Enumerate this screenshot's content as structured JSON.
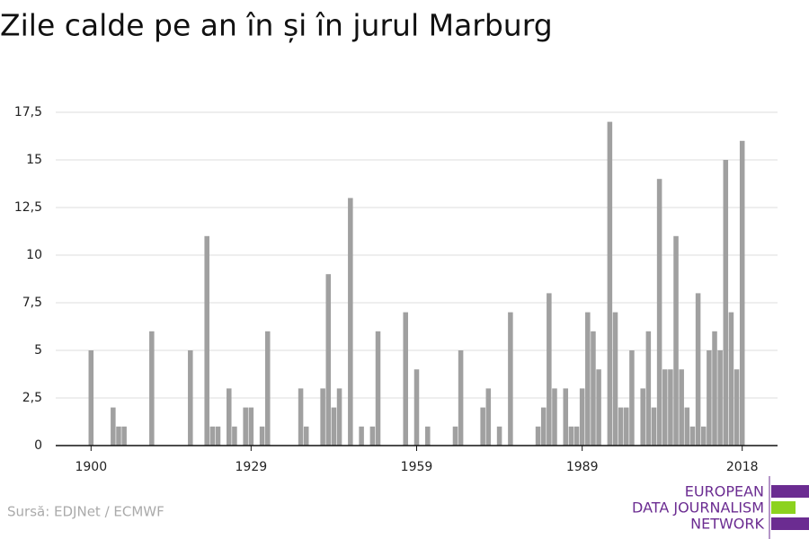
{
  "chart_data": {
    "type": "bar",
    "title": "Zile calde pe an în și în jurul Marburg",
    "source": "Sursă: EDJNet / ECMWF",
    "logo": [
      "EUROPEAN",
      "DATA JOURNALISM",
      "NETWORK"
    ],
    "color": "#a0a0a0",
    "grid": true,
    "x": [
      1900,
      1901,
      1902,
      1903,
      1904,
      1905,
      1906,
      1907,
      1908,
      1909,
      1910,
      1911,
      1912,
      1913,
      1914,
      1915,
      1916,
      1917,
      1918,
      1919,
      1920,
      1921,
      1922,
      1923,
      1924,
      1925,
      1926,
      1927,
      1928,
      1929,
      1930,
      1931,
      1932,
      1933,
      1934,
      1935,
      1936,
      1937,
      1938,
      1939,
      1940,
      1941,
      1942,
      1943,
      1944,
      1945,
      1946,
      1947,
      1948,
      1949,
      1950,
      1951,
      1952,
      1953,
      1954,
      1955,
      1956,
      1957,
      1958,
      1959,
      1960,
      1961,
      1962,
      1963,
      1964,
      1965,
      1966,
      1967,
      1968,
      1969,
      1970,
      1971,
      1972,
      1973,
      1974,
      1975,
      1976,
      1977,
      1978,
      1979,
      1980,
      1981,
      1982,
      1983,
      1984,
      1985,
      1986,
      1987,
      1988,
      1989,
      1990,
      1991,
      1992,
      1993,
      1994,
      1995,
      1996,
      1997,
      1998,
      1999,
      2000,
      2001,
      2002,
      2003,
      2004,
      2005,
      2006,
      2007,
      2008,
      2009,
      2010,
      2011,
      2012,
      2013,
      2014,
      2015,
      2016,
      2017,
      2018
    ],
    "values": [
      5,
      0,
      0,
      0,
      2,
      1,
      1,
      0,
      0,
      0,
      0,
      6,
      0,
      0,
      0,
      0,
      0,
      0,
      5,
      0,
      0,
      11,
      1,
      1,
      0,
      3,
      1,
      0,
      2,
      2,
      0,
      1,
      6,
      0,
      0,
      0,
      0,
      0,
      3,
      1,
      0,
      0,
      3,
      9,
      2,
      3,
      0,
      13,
      0,
      1,
      0,
      1,
      6,
      0,
      0,
      0,
      0,
      7,
      0,
      4,
      0,
      1,
      0,
      0,
      0,
      0,
      1,
      5,
      0,
      0,
      0,
      2,
      3,
      0,
      1,
      0,
      7,
      0,
      0,
      0,
      0,
      1,
      2,
      8,
      3,
      0,
      3,
      1,
      1,
      3,
      7,
      6,
      4,
      0,
      17,
      7,
      2,
      2,
      5,
      0,
      3,
      6,
      2,
      14,
      4,
      4,
      11,
      4,
      2,
      1,
      8,
      1,
      5,
      6,
      5,
      15,
      7,
      4,
      16
    ],
    "xlim": [
      1893.6,
      2024.4
    ],
    "xticks": [
      1900,
      1929,
      1959,
      1989,
      2018
    ],
    "ylim": [
      0,
      17.5
    ],
    "yticks": [
      0,
      {
        "value": 2.5,
        "label": "2,5"
      },
      5,
      {
        "value": 7.5,
        "label": "7,5"
      },
      10,
      {
        "value": 12.5,
        "label": "12,5"
      },
      15,
      {
        "value": 17.5,
        "label": "17,5"
      }
    ]
  }
}
